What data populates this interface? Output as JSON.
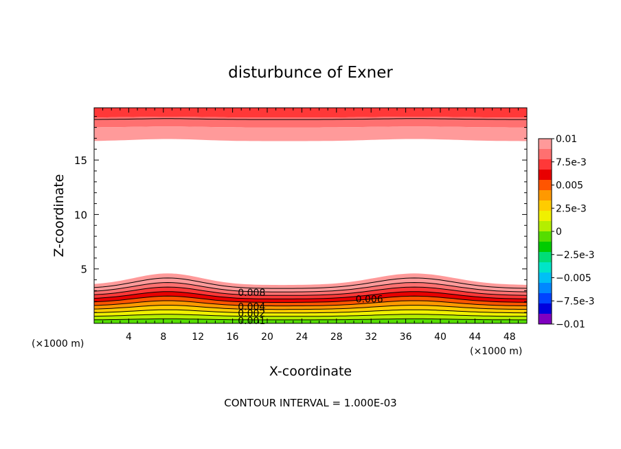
{
  "chart_data": {
    "type": "contour",
    "title": "disturbunce of Exner",
    "xlabel": "X-coordinate",
    "ylabel": "Z-coordinate",
    "x_unit_left": "(×1000 m)",
    "x_unit_right": "(×1000 m)",
    "xlim": [
      0,
      50
    ],
    "ylim": [
      0,
      19.8
    ],
    "x_ticks": [
      "4",
      "8",
      "12",
      "16",
      "20",
      "24",
      "28",
      "32",
      "36",
      "40",
      "44",
      "48"
    ],
    "y_ticks": [
      "5",
      "10",
      "15"
    ],
    "footer": "CONTOUR INTERVAL = 1.000E-03",
    "contour_interval": 0.001,
    "contour_labels": [
      {
        "text": "0.008",
        "x": 18.2,
        "z": 2.85
      },
      {
        "text": "0.006",
        "x": 31.8,
        "z": 2.25
      },
      {
        "text": "0.004",
        "x": 18.2,
        "z": 1.55
      },
      {
        "text": "0.002",
        "x": 18.2,
        "z": 0.95
      },
      {
        "text": "0.001",
        "x": 18.2,
        "z": 0.25
      }
    ],
    "colorbar": {
      "labels": [
        "0.01",
        "7.5e-3",
        "0.005",
        "2.5e-3",
        "0",
        "−2.5e-3",
        "−0.005",
        "−7.5e-3",
        "−0.01"
      ],
      "colors": [
        "#ff9a9a",
        "#ff7070",
        "#ff3838",
        "#e80000",
        "#ff5500",
        "#ff9900",
        "#ffcc00",
        "#f0f000",
        "#b4ee00",
        "#55dd00",
        "#00cc00",
        "#00dd77",
        "#00e5c8",
        "#00c0f5",
        "#0088ff",
        "#0044ff",
        "#0000dd",
        "#7f00c0"
      ]
    }
  }
}
